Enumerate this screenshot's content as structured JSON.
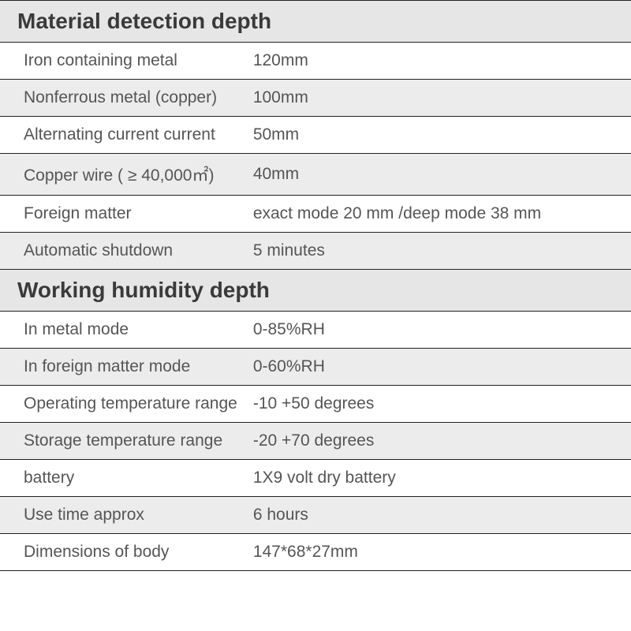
{
  "sections": [
    {
      "title": "Material detection depth",
      "rows": [
        {
          "label": "Iron containing metal",
          "value": "120mm"
        },
        {
          "label": "Nonferrous metal (copper)",
          "value": "100mm"
        },
        {
          "label": "Alternating current current",
          "value": "50mm"
        },
        {
          "label": "Copper wire ( ≥ 40,000㎡)",
          "value": "40mm"
        },
        {
          "label": "Foreign matter",
          "value": "exact mode 20 mm /deep mode 38 mm"
        },
        {
          "label": "Automatic shutdown",
          "value": "5 minutes"
        }
      ]
    },
    {
      "title": "Working humidity depth",
      "rows": [
        {
          "label": "In metal mode",
          "value": "0-85%RH"
        },
        {
          "label": "In foreign matter mode",
          "value": "0-60%RH"
        },
        {
          "label": "Operating temperature range",
          "value": "-10 +50 degrees"
        },
        {
          "label": "Storage temperature range",
          "value": "-20 +70 degrees"
        },
        {
          "label": "battery",
          "value": "1X9 volt dry battery"
        },
        {
          "label": "Use time approx",
          "value": "6 hours"
        },
        {
          "label": "Dimensions of body",
          "value": "147*68*27mm"
        }
      ]
    }
  ],
  "style": {
    "header_bg": "#e6e6e6",
    "alt_row_bg": "#ececec",
    "text_color": "#555555",
    "header_text_color": "#3a3a3a",
    "border_color": "#222222",
    "header_fontsize": 28,
    "row_fontsize": 21,
    "label_col_width": 300
  }
}
